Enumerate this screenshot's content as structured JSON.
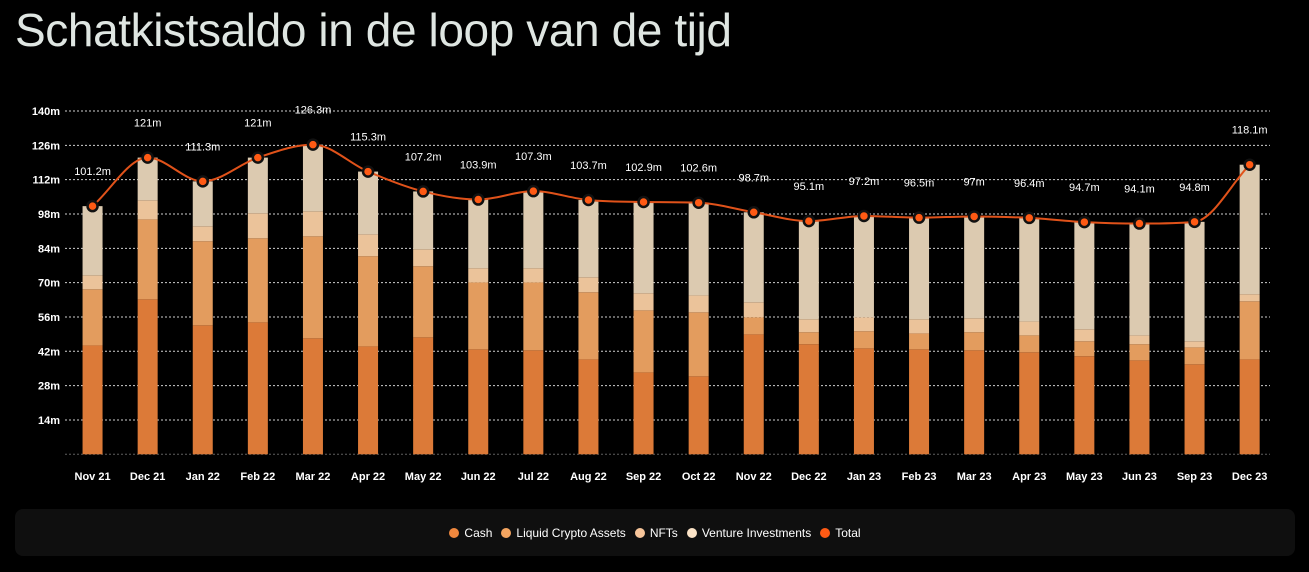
{
  "chart_data": {
    "type": "bar",
    "stacked": true,
    "title": "Schatkistsaldo in de loop van de tijd",
    "xlabel": "",
    "ylabel": "",
    "ylim": [
      0,
      140
    ],
    "yticks": [
      14,
      28,
      42,
      56,
      70,
      84,
      98,
      112,
      126,
      140
    ],
    "ytick_labels": [
      "14m",
      "28m",
      "42m",
      "56m",
      "70m",
      "84m",
      "98m",
      "112m",
      "126m",
      "140m"
    ],
    "grid": true,
    "legend_position": "bottom",
    "categories": [
      "Nov 21",
      "Dec 21",
      "Jan 22",
      "Feb 22",
      "Mar 22",
      "Apr 22",
      "May 22",
      "Jun 22",
      "Jul 22",
      "Aug 22",
      "Sep 22",
      "Oct 22",
      "Nov 22",
      "Dec 22",
      "Jan 23",
      "Feb 23",
      "Mar 23",
      "Apr 23",
      "May 23",
      "Jun 23",
      "Sep 23",
      "Dec 23"
    ],
    "series": [
      {
        "name": "Cash",
        "color": "#dc7a38",
        "legend_color": "#f0883e",
        "values": [
          44.4,
          63.2,
          52.6,
          53.8,
          47.3,
          44.0,
          47.7,
          42.8,
          42.4,
          38.7,
          33.4,
          31.8,
          48.9,
          44.9,
          43.2,
          42.8,
          42.4,
          41.6,
          40.0,
          38.3,
          36.7,
          38.7
        ]
      },
      {
        "name": "Liquid Crypto Assets",
        "color": "#e39c5e",
        "legend_color": "#f4a560",
        "values": [
          22.9,
          32.6,
          34.3,
          34.3,
          41.6,
          36.8,
          29.0,
          27.3,
          27.7,
          27.4,
          25.3,
          26.1,
          7.0,
          4.9,
          7.0,
          6.5,
          7.4,
          6.9,
          6.1,
          6.6,
          6.9,
          23.7
        ]
      },
      {
        "name": "NFTs",
        "color": "#ebc39a",
        "legend_color": "#f7c59a",
        "values": [
          5.7,
          7.8,
          6.1,
          10.2,
          10.2,
          8.9,
          6.9,
          5.8,
          5.8,
          6.1,
          7.0,
          6.9,
          6.1,
          5.3,
          5.7,
          5.8,
          5.7,
          5.7,
          4.9,
          3.6,
          2.5,
          2.9
        ]
      },
      {
        "name": "Venture Investments",
        "color": "#dccab0",
        "legend_color": "#fbe3c7",
        "values": [
          28.2,
          17.4,
          18.3,
          22.7,
          27.2,
          25.6,
          23.6,
          28.0,
          31.4,
          31.5,
          37.2,
          37.8,
          36.7,
          40.0,
          41.3,
          41.4,
          41.5,
          42.2,
          43.7,
          45.6,
          48.7,
          52.8
        ]
      }
    ],
    "total": {
      "name": "Total",
      "type": "line",
      "color": "#e0521a",
      "legend_color": "#ff5a14",
      "values": [
        101.2,
        121,
        111.3,
        121,
        126.3,
        115.3,
        107.2,
        103.9,
        107.3,
        103.7,
        102.9,
        102.6,
        98.7,
        95.1,
        97.2,
        96.5,
        97,
        96.4,
        94.7,
        94.1,
        94.8,
        118.1
      ],
      "labels": [
        "101.2m",
        "121m",
        "111.3m",
        "121m",
        "126.3m",
        "115.3m",
        "107.2m",
        "103.9m",
        "107.3m",
        "103.7m",
        "102.9m",
        "102.6m",
        "98.7m",
        "95.1m",
        "97.2m",
        "96.5m",
        "97m",
        "96.4m",
        "94.7m",
        "94.1m",
        "94.8m",
        "118.1m"
      ]
    }
  }
}
